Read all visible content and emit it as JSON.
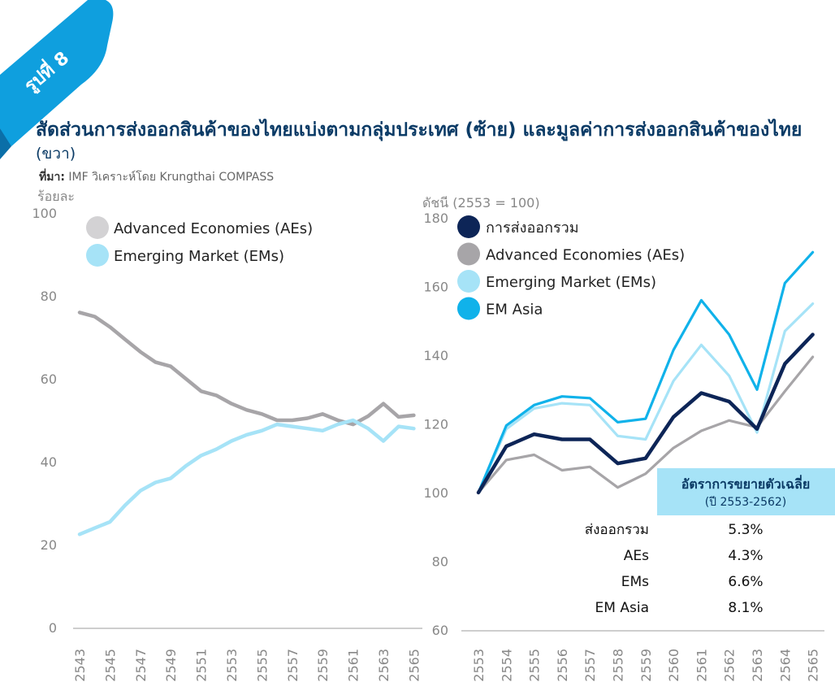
{
  "badge": {
    "label": "รูปที่ 8"
  },
  "title": {
    "main": "สัดส่วนการส่งออกสินค้าของไทยแบ่งตามกลุ่มประเทศ (ซ้าย) และมูลค่าการส่งออกสินค้าของไทย",
    "suffix": "(ขวา)"
  },
  "source": {
    "label": "ที่มา:",
    "text": "IMF วิเคราะห์โดย Krungthai COMPASS"
  },
  "colors": {
    "navy": "#0d2557",
    "gray": "#a7a5a8",
    "lightgray": "#d3d2d4",
    "lightblue": "#a6e3f7",
    "blue": "#10b2ea",
    "boxbg": "#a6e3f7"
  },
  "chart_data": [
    {
      "type": "line",
      "title": "",
      "ylabel": "ร้อยละ",
      "ylim": [
        0,
        100
      ],
      "yticks": [
        "0",
        "20",
        "40",
        "60",
        "80",
        "100"
      ],
      "x": [
        "2543",
        "2544",
        "2545",
        "2546",
        "2547",
        "2548",
        "2549",
        "2550",
        "2551",
        "2552",
        "2553",
        "2554",
        "2555",
        "2556",
        "2557",
        "2558",
        "2559",
        "2560",
        "2561",
        "2562",
        "2563",
        "2564",
        "2565"
      ],
      "xticks": [
        "2543",
        "2545",
        "2547",
        "2549",
        "2551",
        "2553",
        "2555",
        "2557",
        "2559",
        "2561",
        "2563",
        "2565"
      ],
      "legend": [
        "Advanced Economies (AEs)",
        "Emerging Market (EMs)"
      ],
      "series": [
        {
          "name": "Advanced Economies (AEs)",
          "color": "#a7a5a8",
          "legend_color": "#d3d2d4",
          "values": [
            76,
            75,
            72.5,
            69.5,
            66.5,
            64,
            63,
            60,
            57,
            56,
            54,
            52.5,
            51.5,
            50,
            50,
            50.5,
            51.5,
            50,
            49,
            51,
            54,
            50.8,
            51.2
          ]
        },
        {
          "name": "Emerging Market (EMs)",
          "color": "#a6e3f7",
          "legend_color": "#a6e3f7",
          "values": [
            22.5,
            24,
            25.5,
            29.5,
            33,
            35,
            36,
            39,
            41.5,
            43,
            45,
            46.5,
            47.5,
            49,
            48.5,
            48,
            47.5,
            49,
            50,
            48,
            45,
            48.5,
            48
          ]
        }
      ]
    },
    {
      "type": "line",
      "title": "",
      "ylabel": "ดัชนี (2553 = 100)",
      "ylim": [
        60,
        180
      ],
      "yticks": [
        "60",
        "80",
        "100",
        "120",
        "140",
        "160",
        "180"
      ],
      "x": [
        "2553",
        "2554",
        "2555",
        "2556",
        "2557",
        "2558",
        "2559",
        "2560",
        "2561",
        "2562",
        "2563",
        "2564",
        "2565"
      ],
      "legend": [
        "การส่งออกรวม",
        "Advanced Economies (AEs)",
        "Emerging Market (EMs)",
        "EM Asia"
      ],
      "series": [
        {
          "name": "การส่งออกรวม",
          "color": "#0d2557",
          "values": [
            100,
            113.5,
            117,
            115.5,
            115.5,
            108.5,
            110,
            122,
            129,
            126.5,
            118.5,
            137.5,
            146
          ]
        },
        {
          "name": "Advanced Economies (AEs)",
          "color": "#a7a5a8",
          "values": [
            100,
            109.5,
            111,
            106.5,
            107.5,
            101.5,
            105.5,
            113,
            118,
            121,
            119,
            129.5,
            139.5
          ]
        },
        {
          "name": "Emerging Market (EMs)",
          "color": "#a6e3f7",
          "values": [
            100,
            118.5,
            124.5,
            126,
            125.5,
            116.5,
            115.5,
            132.5,
            143,
            134,
            117.5,
            147,
            155
          ]
        },
        {
          "name": "EM Asia",
          "color": "#10b2ea",
          "values": [
            100,
            119.5,
            125.5,
            128,
            127.5,
            120.5,
            121.5,
            141.5,
            156,
            146,
            130,
            161,
            170
          ]
        }
      ],
      "growth_table": {
        "title": "อัตราการขยายตัวเฉลี่ย",
        "subtitle": "(ปี 2553-2562)",
        "rows": [
          {
            "label": "ส่งออกรวม",
            "value": "5.3%"
          },
          {
            "label": "AEs",
            "value": "4.3%"
          },
          {
            "label": "EMs",
            "value": "6.6%"
          },
          {
            "label": "EM Asia",
            "value": "8.1%"
          }
        ]
      }
    }
  ]
}
